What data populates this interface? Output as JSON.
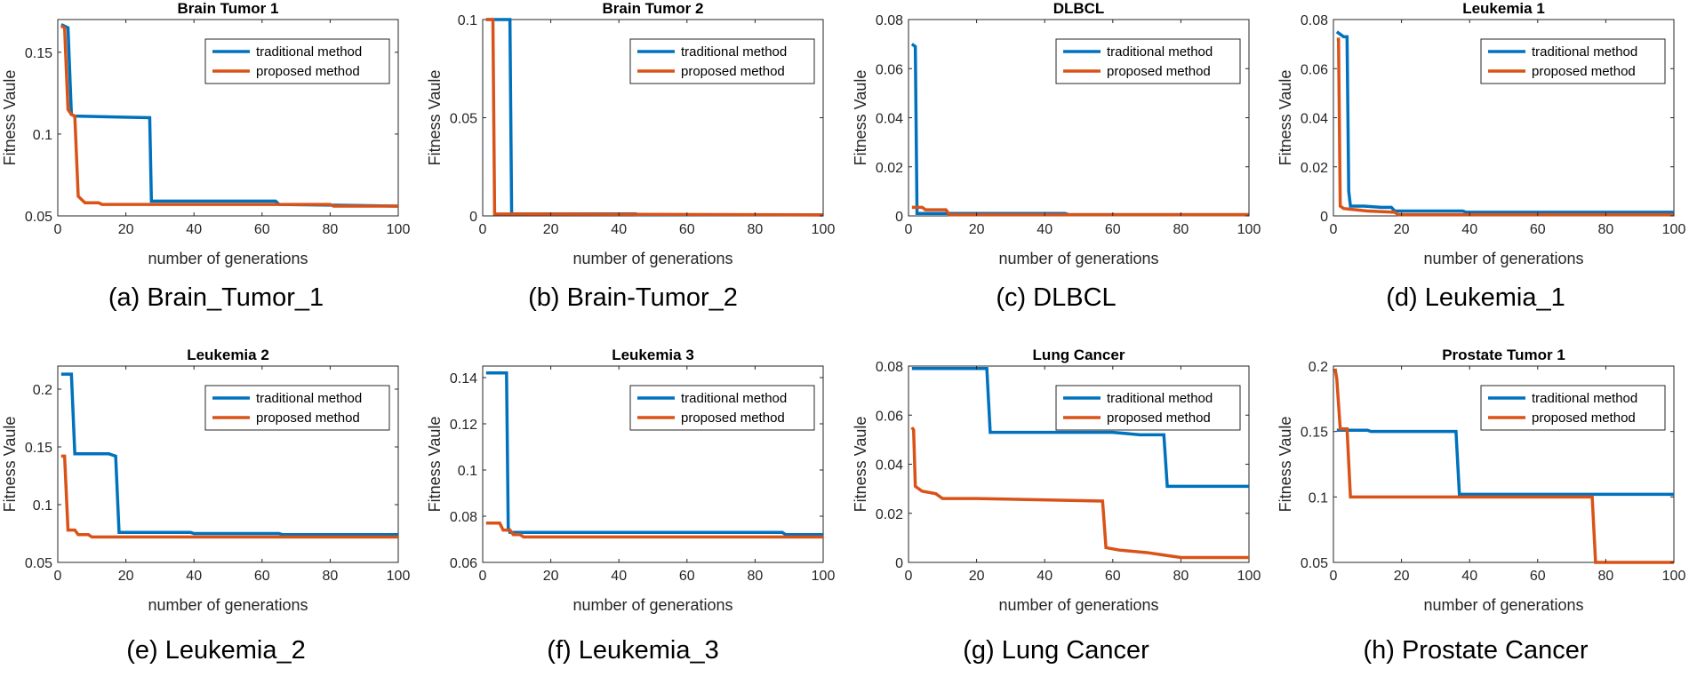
{
  "chart_data": [
    {
      "id": "a",
      "type": "line",
      "title": "Brain Tumor 1",
      "caption": "(a) Brain_Tumor_1",
      "xlabel": "number of generations",
      "ylabel": "Fitness Vaule",
      "xlim": [
        0,
        100
      ],
      "ylim": [
        0.05,
        0.17
      ],
      "xticks": [
        0,
        20,
        40,
        60,
        80,
        100
      ],
      "xtick_labels": [
        "0",
        "20",
        "40",
        "60",
        "80",
        "100"
      ],
      "yticks": [
        0.05,
        0.1,
        0.15
      ],
      "ytick_labels": [
        "0.05",
        "0.1",
        "0.15"
      ],
      "legend_position": "top-right",
      "series": [
        {
          "name": "traditional method",
          "color": "#0072BD",
          "x": [
            1,
            3,
            4,
            5,
            27,
            27.5,
            64,
            65,
            100
          ],
          "y": [
            0.167,
            0.165,
            0.112,
            0.111,
            0.11,
            0.059,
            0.059,
            0.057,
            0.056
          ]
        },
        {
          "name": "proposed method",
          "color": "#D95319",
          "x": [
            1,
            2,
            3,
            4,
            5,
            6,
            7,
            8,
            12,
            13,
            80,
            81,
            100
          ],
          "y": [
            0.166,
            0.165,
            0.115,
            0.112,
            0.111,
            0.062,
            0.06,
            0.058,
            0.058,
            0.057,
            0.057,
            0.056,
            0.056
          ]
        }
      ]
    },
    {
      "id": "b",
      "type": "line",
      "title": "Brain Tumor 2",
      "caption": "(b) Brain-Tumor_2",
      "xlabel": "number of generations",
      "ylabel": "Fitness Vaule",
      "xlim": [
        0,
        100
      ],
      "ylim": [
        0,
        0.1
      ],
      "xticks": [
        0,
        20,
        40,
        60,
        80,
        100
      ],
      "xtick_labels": [
        "0",
        "20",
        "40",
        "60",
        "80",
        "100"
      ],
      "yticks": [
        0,
        0.05,
        0.1
      ],
      "ytick_labels": [
        "0",
        "0.05",
        "0.1"
      ],
      "legend_position": "top-right",
      "series": [
        {
          "name": "traditional method",
          "color": "#0072BD",
          "x": [
            1,
            8,
            8.5,
            45,
            46,
            100
          ],
          "y": [
            0.1,
            0.1,
            0.001,
            0.001,
            0.0005,
            0.0005
          ]
        },
        {
          "name": "proposed method",
          "color": "#D95319",
          "x": [
            1,
            3,
            3.5,
            100
          ],
          "y": [
            0.1,
            0.1,
            0.001,
            0.0005
          ]
        }
      ]
    },
    {
      "id": "c",
      "type": "line",
      "title": "DLBCL",
      "caption": "(c) DLBCL",
      "xlabel": "number of generations",
      "ylabel": "Fitness Vaule",
      "xlim": [
        0,
        100
      ],
      "ylim": [
        0,
        0.08
      ],
      "xticks": [
        0,
        20,
        40,
        60,
        80,
        100
      ],
      "xtick_labels": [
        "0",
        "20",
        "40",
        "60",
        "80",
        "100"
      ],
      "yticks": [
        0,
        0.02,
        0.04,
        0.06,
        0.08
      ],
      "ytick_labels": [
        "0",
        "0.02",
        "0.04",
        "0.06",
        "0.08"
      ],
      "legend_position": "top-right",
      "series": [
        {
          "name": "traditional method",
          "color": "#0072BD",
          "x": [
            1,
            2,
            2.5,
            46,
            47,
            100
          ],
          "y": [
            0.07,
            0.069,
            0.001,
            0.001,
            0.0005,
            0.0005
          ]
        },
        {
          "name": "proposed method",
          "color": "#D95319",
          "x": [
            1,
            4,
            5,
            11,
            12,
            100
          ],
          "y": [
            0.0035,
            0.0035,
            0.0025,
            0.0025,
            0.0005,
            0.0005
          ]
        }
      ]
    },
    {
      "id": "d",
      "type": "line",
      "title": "Leukemia 1",
      "caption": "(d) Leukemia_1",
      "xlabel": "number of generations",
      "ylabel": "Fitness Vaule",
      "xlim": [
        0,
        100
      ],
      "ylim": [
        0,
        0.08
      ],
      "xticks": [
        0,
        20,
        40,
        60,
        80,
        100
      ],
      "xtick_labels": [
        "0",
        "20",
        "40",
        "60",
        "80",
        "100"
      ],
      "yticks": [
        0,
        0.02,
        0.04,
        0.06,
        0.08
      ],
      "ytick_labels": [
        "0",
        "0.02",
        "0.04",
        "0.06",
        "0.08"
      ],
      "legend_position": "top-right",
      "series": [
        {
          "name": "traditional method",
          "color": "#0072BD",
          "x": [
            1,
            2,
            3,
            4,
            4.5,
            5,
            9,
            14,
            17,
            18,
            38,
            39,
            100
          ],
          "y": [
            0.075,
            0.074,
            0.073,
            0.073,
            0.01,
            0.004,
            0.004,
            0.0035,
            0.0035,
            0.002,
            0.002,
            0.0015,
            0.0015
          ]
        },
        {
          "name": "proposed method",
          "color": "#D95319",
          "x": [
            1,
            1.5,
            2,
            3,
            10,
            18,
            19,
            100
          ],
          "y": [
            0.072,
            0.072,
            0.004,
            0.003,
            0.002,
            0.0015,
            0.0005,
            0.0005
          ]
        }
      ]
    },
    {
      "id": "e",
      "type": "line",
      "title": "Leukemia 2",
      "caption": "(e) Leukemia_2",
      "xlabel": "number of generations",
      "ylabel": "Fitness Vaule",
      "xlim": [
        0,
        100
      ],
      "ylim": [
        0.05,
        0.22
      ],
      "xticks": [
        0,
        20,
        40,
        60,
        80,
        100
      ],
      "xtick_labels": [
        "0",
        "20",
        "40",
        "60",
        "80",
        "100"
      ],
      "yticks": [
        0.05,
        0.1,
        0.15,
        0.2
      ],
      "ytick_labels": [
        "0.05",
        "0.1",
        "0.15",
        "0.2"
      ],
      "legend_position": "top-right",
      "series": [
        {
          "name": "traditional method",
          "color": "#0072BD",
          "x": [
            1,
            4,
            5,
            15,
            17,
            18,
            39,
            40,
            65,
            66,
            100
          ],
          "y": [
            0.213,
            0.213,
            0.144,
            0.144,
            0.142,
            0.076,
            0.076,
            0.075,
            0.075,
            0.074,
            0.074
          ]
        },
        {
          "name": "proposed method",
          "color": "#D95319",
          "x": [
            1,
            2,
            3,
            5,
            6,
            9,
            10,
            100
          ],
          "y": [
            0.142,
            0.142,
            0.078,
            0.078,
            0.074,
            0.074,
            0.072,
            0.072
          ]
        }
      ]
    },
    {
      "id": "f",
      "type": "line",
      "title": "Leukemia 3",
      "caption": "(f) Leukemia_3",
      "xlabel": "number of generations",
      "ylabel": "Fitness Vaule",
      "xlim": [
        0,
        100
      ],
      "ylim": [
        0.06,
        0.145
      ],
      "xticks": [
        0,
        20,
        40,
        60,
        80,
        100
      ],
      "xtick_labels": [
        "0",
        "20",
        "40",
        "60",
        "80",
        "100"
      ],
      "yticks": [
        0.06,
        0.08,
        0.1,
        0.12,
        0.14
      ],
      "ytick_labels": [
        "0.06",
        "0.08",
        "0.1",
        "0.12",
        "0.14"
      ],
      "legend_position": "top-right",
      "series": [
        {
          "name": "traditional method",
          "color": "#0072BD",
          "x": [
            1,
            7,
            7.5,
            8,
            88,
            89,
            100
          ],
          "y": [
            0.142,
            0.142,
            0.075,
            0.073,
            0.073,
            0.072,
            0.072
          ]
        },
        {
          "name": "proposed method",
          "color": "#D95319",
          "x": [
            1,
            5,
            6,
            8,
            9,
            11,
            12,
            100
          ],
          "y": [
            0.077,
            0.077,
            0.074,
            0.074,
            0.072,
            0.072,
            0.071,
            0.071
          ]
        }
      ]
    },
    {
      "id": "g",
      "type": "line",
      "title": "Lung Cancer",
      "caption": "(g) Lung Cancer",
      "xlabel": "number of generations",
      "ylabel": "Fitness Vaule",
      "xlim": [
        0,
        100
      ],
      "ylim": [
        0,
        0.08
      ],
      "xticks": [
        0,
        20,
        40,
        60,
        80,
        100
      ],
      "xtick_labels": [
        "0",
        "20",
        "40",
        "60",
        "80",
        "100"
      ],
      "yticks": [
        0,
        0.02,
        0.04,
        0.06,
        0.08
      ],
      "ytick_labels": [
        "0",
        "0.02",
        "0.04",
        "0.06",
        "0.08"
      ],
      "legend_position": "top-right",
      "series": [
        {
          "name": "traditional method",
          "color": "#0072BD",
          "x": [
            1,
            23,
            24,
            60,
            68,
            75,
            76,
            100
          ],
          "y": [
            0.079,
            0.079,
            0.053,
            0.053,
            0.052,
            0.052,
            0.031,
            0.031
          ]
        },
        {
          "name": "proposed method",
          "color": "#D95319",
          "x": [
            1,
            1.5,
            2,
            4,
            8,
            10,
            20,
            57,
            58,
            62,
            70,
            75,
            80,
            100
          ],
          "y": [
            0.055,
            0.054,
            0.031,
            0.029,
            0.028,
            0.026,
            0.026,
            0.025,
            0.006,
            0.005,
            0.004,
            0.003,
            0.002,
            0.002
          ]
        }
      ]
    },
    {
      "id": "h",
      "type": "line",
      "title": "Prostate Tumor 1",
      "caption": "(h) Prostate Cancer",
      "xlabel": "number of generations",
      "ylabel": "Fitness Vaule",
      "xlim": [
        0,
        100
      ],
      "ylim": [
        0.05,
        0.2
      ],
      "xticks": [
        0,
        20,
        40,
        60,
        80,
        100
      ],
      "xtick_labels": [
        "0",
        "20",
        "40",
        "60",
        "80",
        "100"
      ],
      "yticks": [
        0.05,
        0.1,
        0.15,
        0.2
      ],
      "ytick_labels": [
        "0.05",
        "0.1",
        "0.15",
        "0.2"
      ],
      "legend_position": "top-right",
      "series": [
        {
          "name": "traditional method",
          "color": "#0072BD",
          "x": [
            1,
            10,
            11,
            36,
            37,
            100
          ],
          "y": [
            0.151,
            0.151,
            0.15,
            0.15,
            0.102,
            0.102
          ]
        },
        {
          "name": "proposed method",
          "color": "#D95319",
          "x": [
            0.5,
            1,
            2,
            4,
            5,
            76,
            77,
            100
          ],
          "y": [
            0.198,
            0.19,
            0.152,
            0.152,
            0.1,
            0.1,
            0.05,
            0.05
          ]
        }
      ]
    }
  ]
}
